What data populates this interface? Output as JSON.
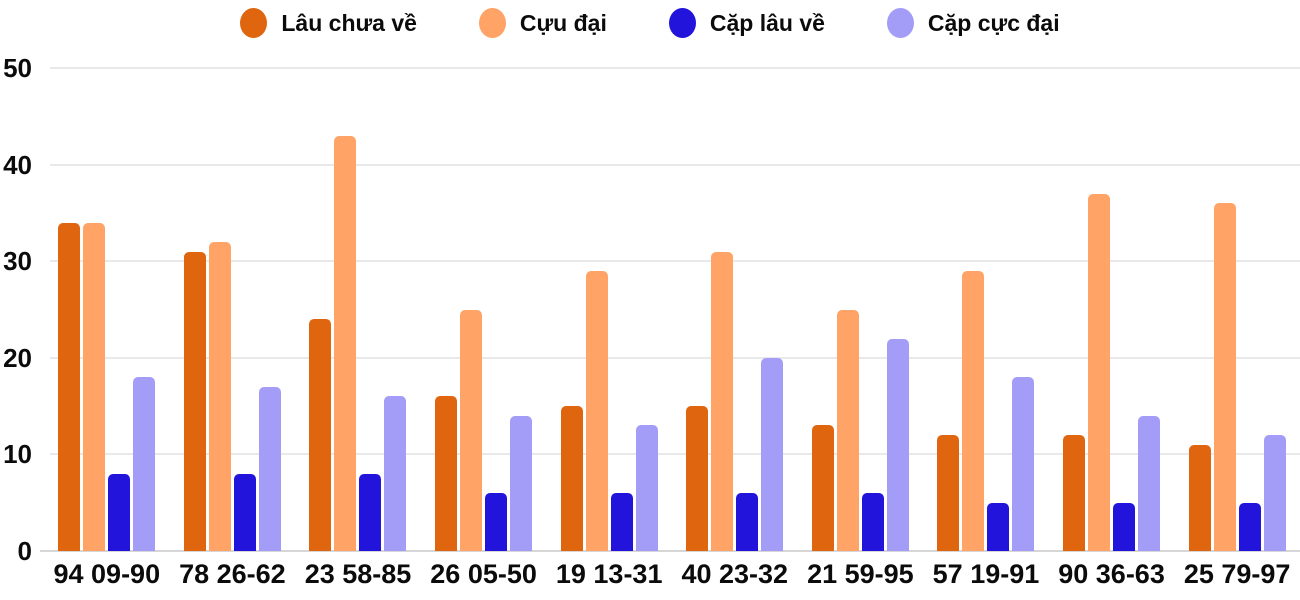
{
  "chart_data": {
    "type": "bar",
    "title": "",
    "categories": [
      "94 09-90",
      "78 26-62",
      "23 58-85",
      "26 05-50",
      "19 13-31",
      "40 23-32",
      "21 59-95",
      "57 19-91",
      "90 36-63",
      "25 79-97"
    ],
    "series": [
      {
        "name": "Lâu chưa về",
        "color": "#E0650F",
        "values": [
          34,
          31,
          24,
          16,
          15,
          15,
          13,
          12,
          12,
          11
        ]
      },
      {
        "name": "Cựu đại",
        "color": "#FFA366",
        "values": [
          34,
          32,
          43,
          25,
          29,
          31,
          25,
          29,
          37,
          36
        ]
      },
      {
        "name": "Cặp lâu về",
        "color": "#2314DC",
        "values": [
          8,
          8,
          8,
          6,
          6,
          6,
          6,
          5,
          5,
          5
        ]
      },
      {
        "name": "Cặp cực đại",
        "color": "#A39DF7",
        "values": [
          18,
          17,
          16,
          14,
          13,
          20,
          22,
          18,
          14,
          12
        ]
      }
    ],
    "ylim": [
      0,
      50
    ],
    "yticks": [
      0,
      10,
      20,
      30,
      40,
      50
    ],
    "grid": true,
    "legend_position": "top",
    "colors": {
      "text": "#0B0B0B",
      "gridline": "#E9E9E9",
      "baseline": "#D6D6D6",
      "background": "#FFFFFF"
    }
  }
}
